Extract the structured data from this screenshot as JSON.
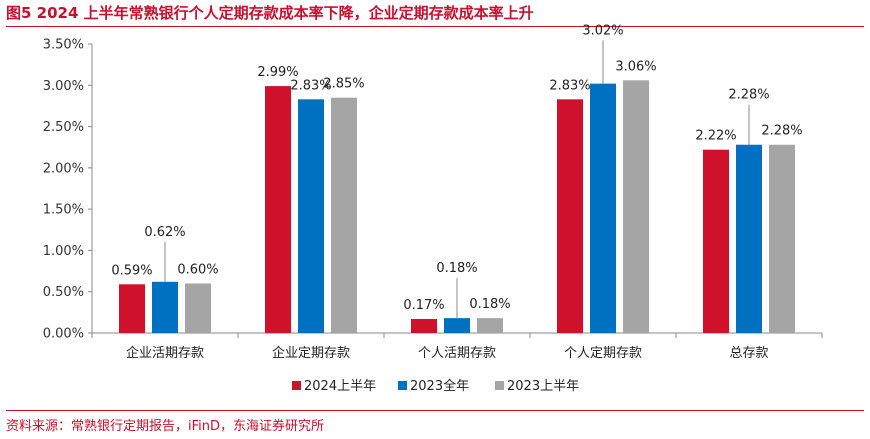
{
  "header": {
    "title": "图5  2024 上半年常熟银行个人定期存款成本率下降，企业定期存款成本率上升"
  },
  "footer": {
    "source": "资料来源：常熟银行定期报告，iFinD，东海证券研究所"
  },
  "chart_data": {
    "type": "bar",
    "title": "",
    "xlabel": "",
    "ylabel": "",
    "categories": [
      "企业活期存款",
      "企业定期存款",
      "个人活期存款",
      "个人定期存款",
      "总存款"
    ],
    "series": [
      {
        "name": "2024上半年",
        "color": "#d0112b",
        "values": [
          0.59,
          2.99,
          0.17,
          2.83,
          2.22
        ],
        "labels": [
          "0.59%",
          "2.99%",
          "0.17%",
          "2.83%",
          "2.22%"
        ]
      },
      {
        "name": "2023全年",
        "color": "#0070c0",
        "values": [
          0.62,
          2.83,
          0.18,
          3.02,
          2.28
        ],
        "labels": [
          "0.62%",
          "2.83%",
          "0.18%",
          "3.02%",
          "2.28%"
        ]
      },
      {
        "name": "2023上半年",
        "color": "#a5a5a5",
        "values": [
          0.6,
          2.85,
          0.18,
          3.06,
          2.28
        ],
        "labels": [
          "0.60%",
          "2.85%",
          "0.18%",
          "3.06%",
          "2.28%"
        ]
      }
    ],
    "ylim": [
      0,
      3.5
    ],
    "yticks": [
      "0.00%",
      "0.50%",
      "1.00%",
      "1.50%",
      "2.00%",
      "2.50%",
      "3.00%",
      "3.50%"
    ],
    "grid": false,
    "legend_position": "bottom"
  }
}
